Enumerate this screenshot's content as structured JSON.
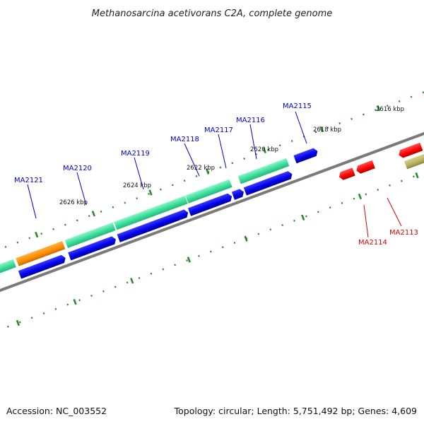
{
  "title": "Methanosarcina acetivorans C2A, complete genome",
  "footer": {
    "accession": "Accession: NC_003552",
    "summary": "Topology: circular; Length: 5,751,492 bp; Genes: 4,609"
  },
  "colors": {
    "backbone": "#808080",
    "tick": "#2a8a2a",
    "forward_gene": "#00008b",
    "reverse_gene": "#0000ff",
    "cds_green": "#5ce6a8",
    "cds_orange": "#ff8c00",
    "cds_red": "#ff0000",
    "cds_olive": "#b8b060",
    "label_blue": "#0000cc",
    "label_red": "#dd0000"
  },
  "scale_labels": [
    {
      "text": "2616 kbp"
    },
    {
      "text": "2618 kbp"
    },
    {
      "text": "2620 kbp"
    },
    {
      "text": "2622 kbp"
    },
    {
      "text": "2624 kbp"
    },
    {
      "text": "2626 kbp"
    }
  ],
  "gene_labels": [
    {
      "text": "MA2115",
      "color": "blue"
    },
    {
      "text": "MA2116",
      "color": "blue"
    },
    {
      "text": "MA2117",
      "color": "blue"
    },
    {
      "text": "MA2118",
      "color": "blue"
    },
    {
      "text": "MA2119",
      "color": "blue"
    },
    {
      "text": "MA2120",
      "color": "blue"
    },
    {
      "text": "MA2121",
      "color": "blue"
    },
    {
      "text": "MA2114",
      "color": "red"
    },
    {
      "text": "MA2113",
      "color": "red"
    }
  ]
}
